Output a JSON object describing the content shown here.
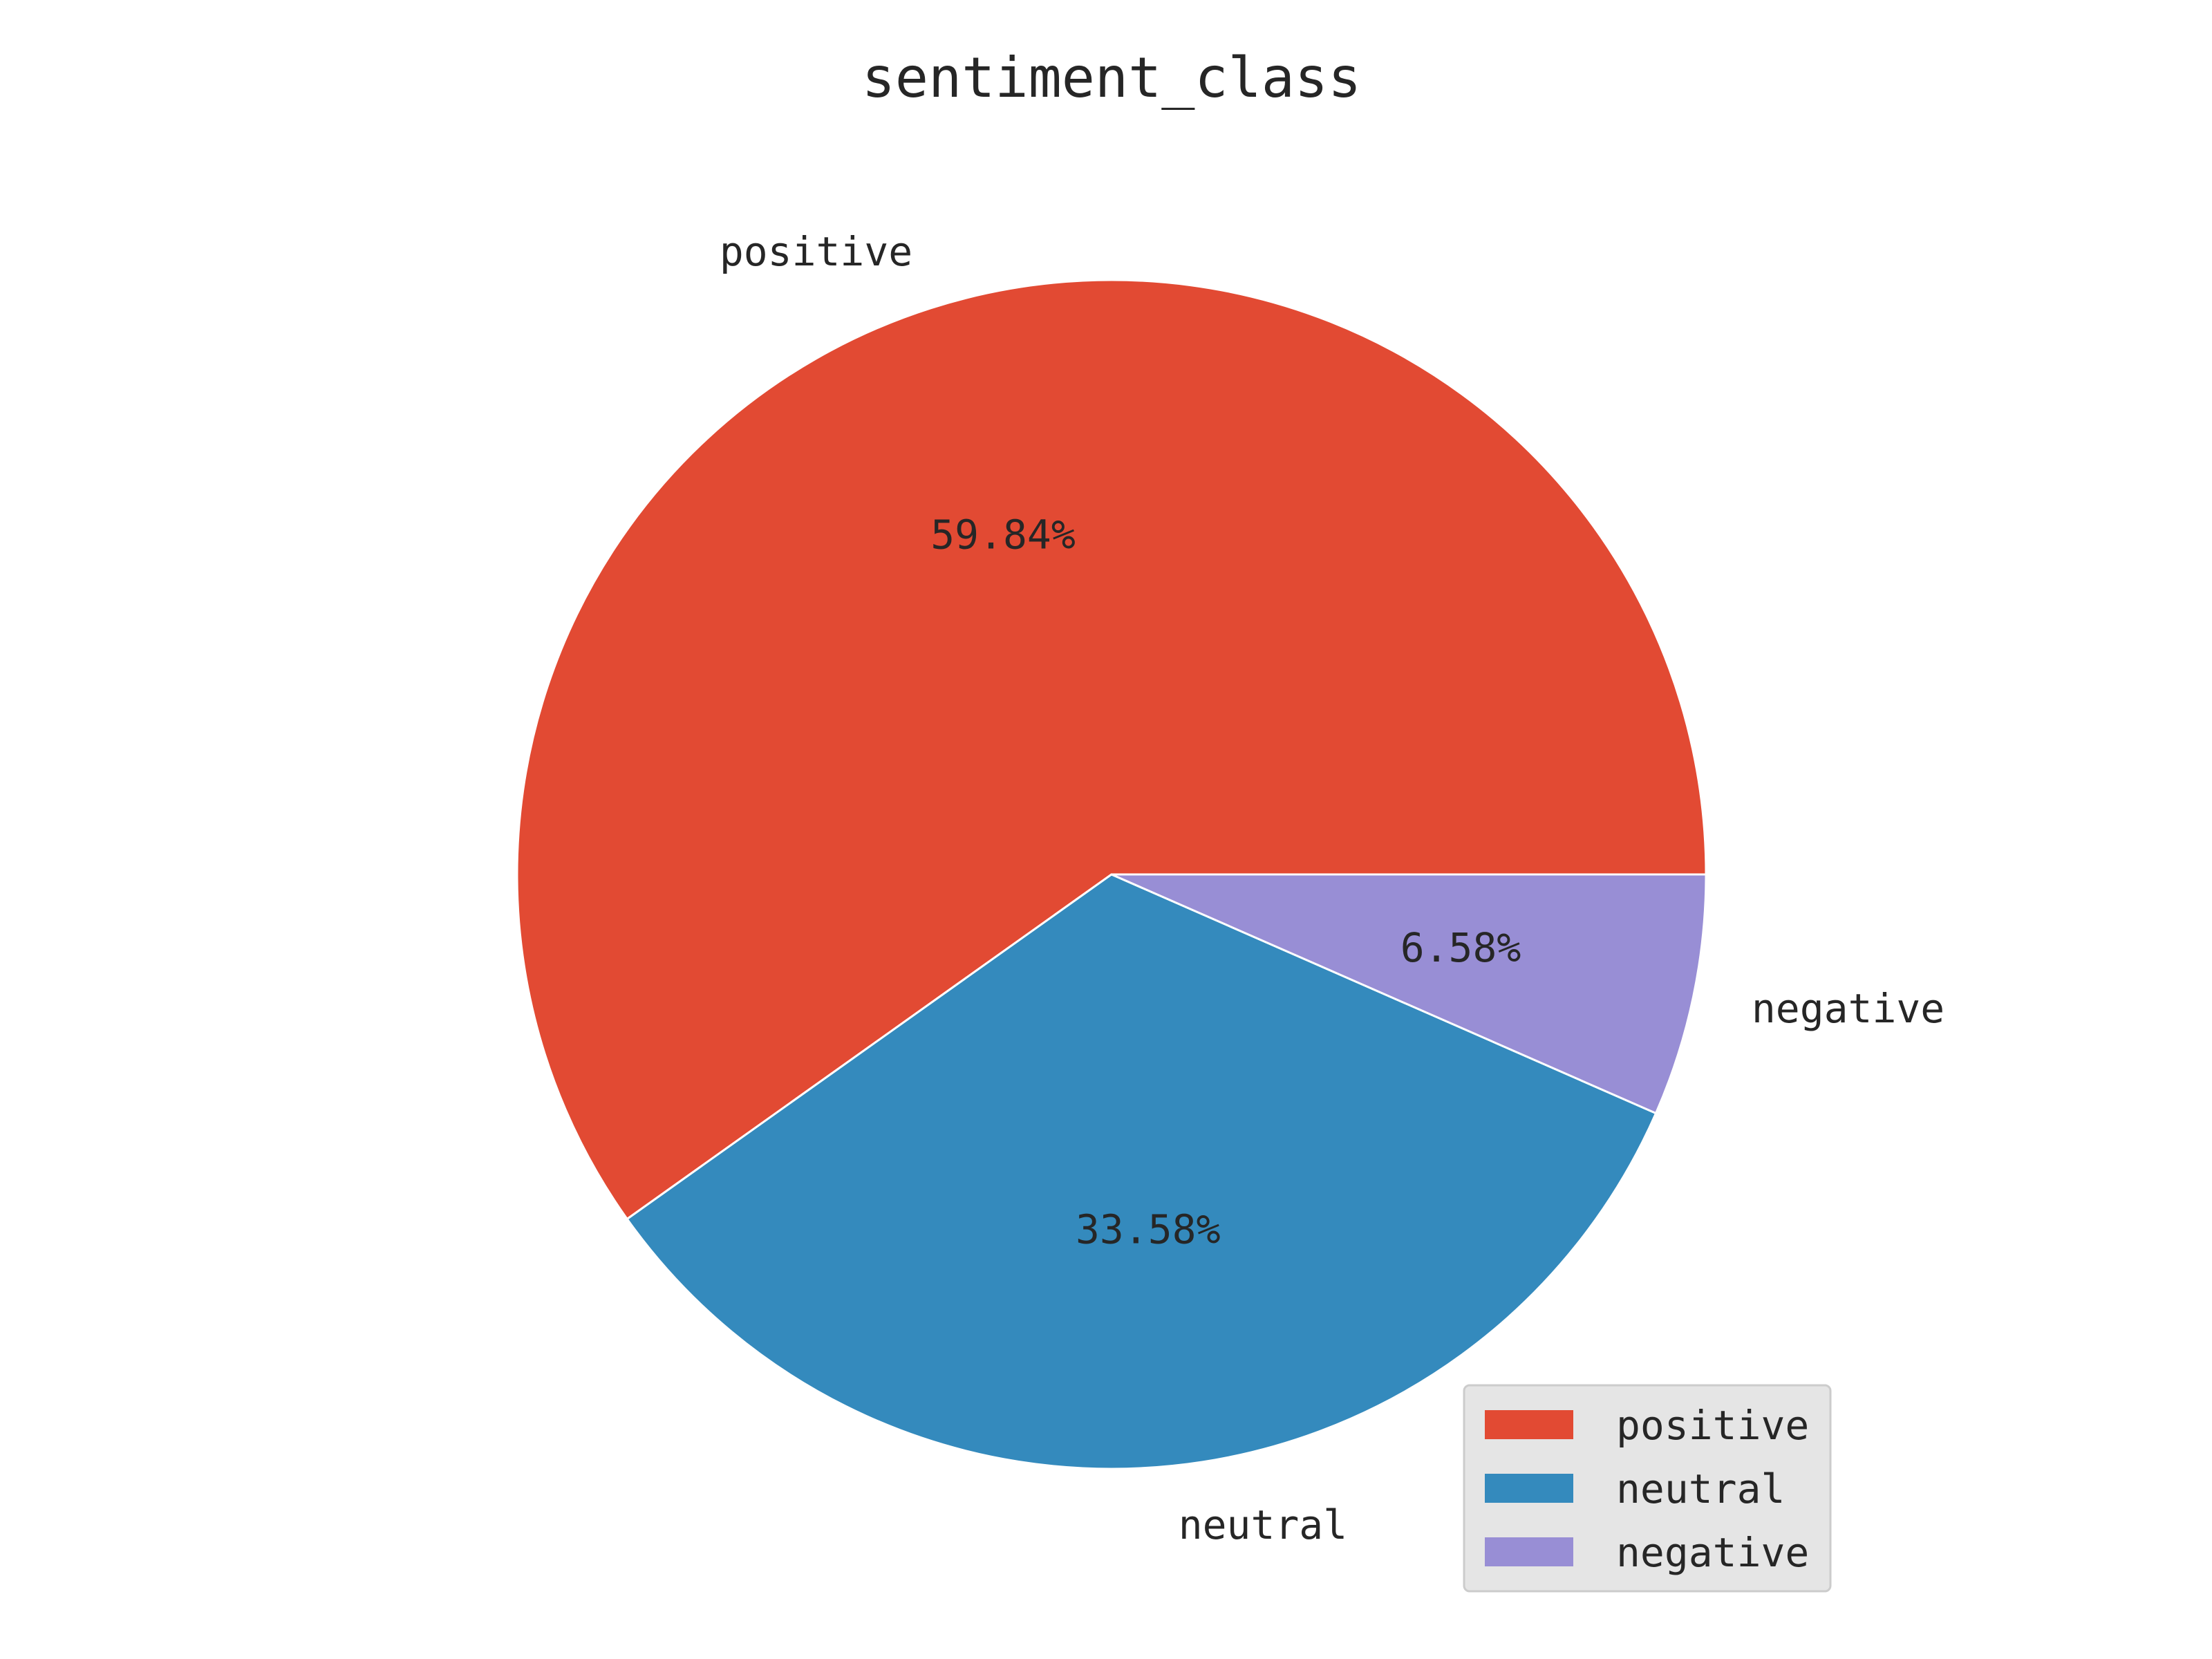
{
  "chart_data": {
    "type": "pie",
    "title": "sentiment_class",
    "start_angle_deg": 0,
    "direction": "counterclockwise",
    "slices": [
      {
        "label": "positive",
        "value": 59.84,
        "pct_label": "59.84%",
        "color": "#E24A33"
      },
      {
        "label": "neutral",
        "value": 33.58,
        "pct_label": "33.58%",
        "color": "#348ABD"
      },
      {
        "label": "negative",
        "value": 6.58,
        "pct_label": "6.58%",
        "color": "#988ED5"
      }
    ],
    "legend": {
      "position": "lower-right",
      "entries": [
        "positive",
        "neutral",
        "negative"
      ]
    }
  }
}
